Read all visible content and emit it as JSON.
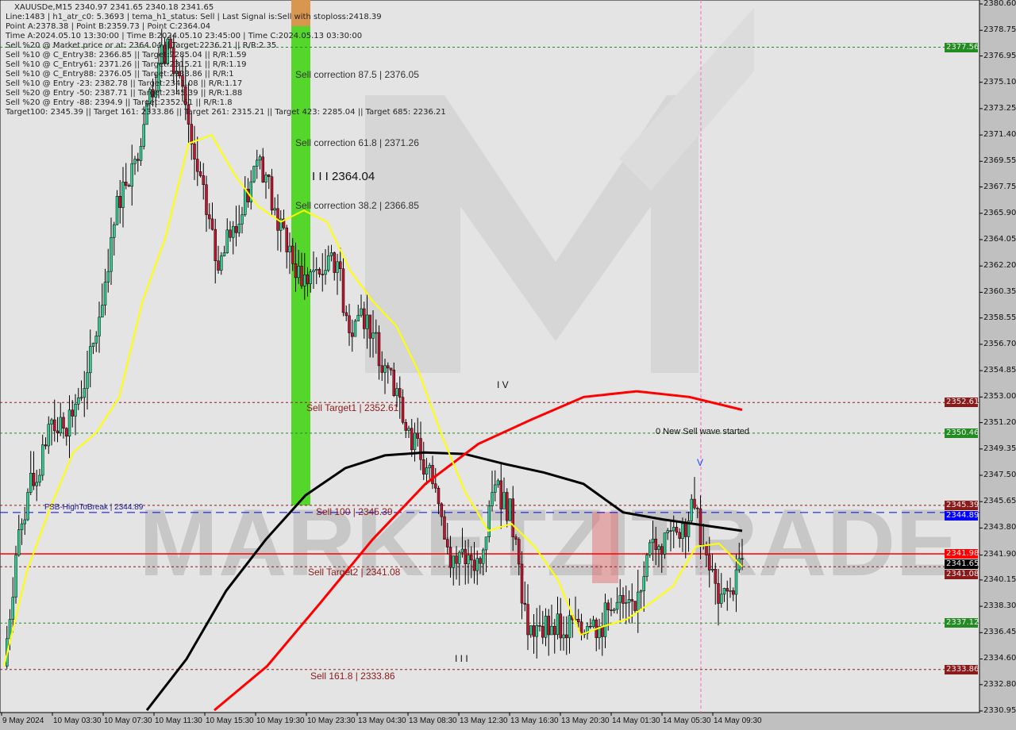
{
  "header": {
    "symbol_line": "XAUUSDe,M15  2340.97 2341.65 2340.18 2341.65",
    "info_lines": [
      "Line:1483 | h1_atr_c0: 5.3693 | tema_h1_status: Sell | Last Signal is:Sell with stoploss:2418.39",
      "Point A:2378.38 | Point B:2359.73 | Point C:2364.04",
      "Time A:2024.05.10 13:30:00 | Time B:2024.05.10 23:45:00 | Time C:2024.05.13 03:30:00",
      "Sell %20 @ Market price or at: 2364.04 || Target:2236.21 || R/R:2.35",
      "Sell %10 @ C_Entry38: 2366.85 || Target:2285.04 || R/R:1.59",
      "Sell %10 @ C_Entry61: 2371.26 || Target:2315.21 || R/R:1.19",
      "Sell %10 @ C_Entry88: 2376.05 || Target:2333.86 || R/R:1",
      "Sell %10 @ Entry -23: 2382.78 || Target:2341.08 || R/R:1.17",
      "Sell %20 @ Entry -50: 2387.71 || Target:2345.39 || R/R:1.88",
      "Sell %20 @ Entry -88: 2394.9 || Target:2352.61 || R/R:1.8",
      "Target100: 2345.39 || Target 161: 2333.86 || Target 261: 2315.21 || Target 423: 2285.04 || Target 685: 2236.21"
    ]
  },
  "annotations": {
    "sell_corr_875": "Sell correction 87.5 | 2376.05",
    "sell_corr_618": "Sell correction 61.8 | 2371.26",
    "sell_corr_382": "Sell correction 38.2 | 2366.85",
    "point_c": "I I I 2364.04",
    "wave_iv": "I V",
    "wave_iii": "I I I",
    "wave_v": "V",
    "sell_target1": "Sell Target1 | 2352.61",
    "new_sell_wave": "0 New Sell wave started",
    "fsb": "FSB-HighToBreak | 2344.89",
    "sell_100": "Sell 100 | 2345.39",
    "sell_target2": "Sell Target2 | 2341.08",
    "sell_1618": "Sell 161.8 | 2333.86",
    "watermark": "MARKETZITRADE"
  },
  "chart_data": {
    "type": "candlestick",
    "ylim": [
      2330.95,
      2380.6
    ],
    "y_ticks": [
      "2380.60",
      "2378.75",
      "2376.95",
      "2375.10",
      "2373.25",
      "2371.40",
      "2369.55",
      "2367.75",
      "2365.90",
      "2364.05",
      "2362.20",
      "2360.35",
      "2358.55",
      "2356.70",
      "2354.85",
      "2353.00",
      "2351.20",
      "2349.35",
      "2347.50",
      "2345.65",
      "2343.80",
      "2341.90",
      "2340.15",
      "2338.30",
      "2336.45",
      "2334.60",
      "2332.80",
      "2330.95"
    ],
    "x_ticks": [
      "9 May 2024",
      "10 May 03:30",
      "10 May 07:30",
      "10 May 11:30",
      "10 May 15:30",
      "10 May 19:30",
      "10 May 23:30",
      "13 May 04:30",
      "13 May 08:30",
      "13 May 12:30",
      "13 May 16:30",
      "13 May 20:30",
      "14 May 01:30",
      "14 May 05:30",
      "14 May 09:30"
    ],
    "closes": [
      2334.1,
      2341.9,
      2346.3,
      2347.5,
      2351.4,
      2350.8,
      2352.5,
      2354.7,
      2358.6,
      2364.2,
      2368.1,
      2369.7,
      2373.6,
      2376.4,
      2377.5,
      2374.8,
      2369.7,
      2365.8,
      2361.9,
      2364.2,
      2365.8,
      2369.2,
      2368.6,
      2364.7,
      2363.6,
      2360.8,
      2361.9,
      2361.9,
      2362.5,
      2357.5,
      2359.2,
      2357.5,
      2355.2,
      2353.6,
      2350.8,
      2348.6,
      2346.9,
      2343.0,
      2341.3,
      2341.9,
      2341.3,
      2346.3,
      2346.3,
      2343.0,
      2336.3,
      2336.9,
      2336.9,
      2336.3,
      2337.4,
      2336.9,
      2336.9,
      2338.0,
      2338.5,
      2338.0,
      2341.9,
      2342.5,
      2343.6,
      2344.1,
      2345.2,
      2341.9,
      2338.5,
      2339.4,
      2341.65
    ],
    "lines": [
      {
        "color": "#000000",
        "values": [
          2331.0,
          2334.6,
          2339.4,
          2343.0,
          2346.1,
          2348.0,
          2348.9,
          2349.1,
          2349.0,
          2348.3,
          2347.7,
          2346.9,
          2344.9,
          2344.4,
          2344.0,
          2343.6
        ]
      },
      {
        "color": "#ff0000",
        "values": [
          2331.0,
          2334.1,
          2338.5,
          2343.0,
          2346.9,
          2349.7,
          2351.4,
          2353.0,
          2353.4,
          2353.0,
          2352.1
        ]
      },
      {
        "color": "#ffff00",
        "values": [
          2334.1,
          2340.8,
          2345.2,
          2349.1,
          2350.5,
          2353.0,
          2359.7,
          2364.2,
          2370.8,
          2371.4,
          2368.6,
          2366.4,
          2365.3,
          2366.1,
          2365.3,
          2361.9,
          2359.7,
          2358.0,
          2354.7,
          2350.2,
          2346.3,
          2343.6,
          2344.1,
          2342.5,
          2340.2,
          2336.3,
          2336.9,
          2337.4,
          2338.5,
          2339.7,
          2342.5,
          2342.7,
          2341.1
        ]
      }
    ],
    "levels": [
      {
        "price": 2377.56,
        "color": "#228b22",
        "style": "dotted",
        "tag": "2377.56"
      },
      {
        "price": 2352.61,
        "color": "#8b1a1a",
        "style": "dotted",
        "tag": "2352.61"
      },
      {
        "price": 2350.46,
        "color": "#228b22",
        "style": "dotted",
        "tag": "2350.46"
      },
      {
        "price": 2345.39,
        "color": "#8b1a1a",
        "style": "dotted",
        "tag": "2345.39"
      },
      {
        "price": 2344.89,
        "color": "#0000ff",
        "style": "dashed",
        "tag": "2344.89"
      },
      {
        "price": 2341.98,
        "color": "#ff0000",
        "style": "solid",
        "tag": "2341.98"
      },
      {
        "price": 2341.65,
        "color": "#000000",
        "style": "none",
        "tag": "2341.65"
      },
      {
        "price": 2341.08,
        "color": "#8b1a1a",
        "style": "dotted",
        "tag": "2341.08"
      },
      {
        "price": 2337.12,
        "color": "#228b22",
        "style": "dotted",
        "tag": "2337.12"
      },
      {
        "price": 2333.86,
        "color": "#8b1a1a",
        "style": "dotted",
        "tag": "2333.86"
      }
    ],
    "colors": {
      "bull": "#2ecc8f",
      "bear": "#c0152f",
      "bg": "#e6e6e6",
      "correction_zone": "#55d62a",
      "stop_zone": "#d9964f"
    }
  }
}
